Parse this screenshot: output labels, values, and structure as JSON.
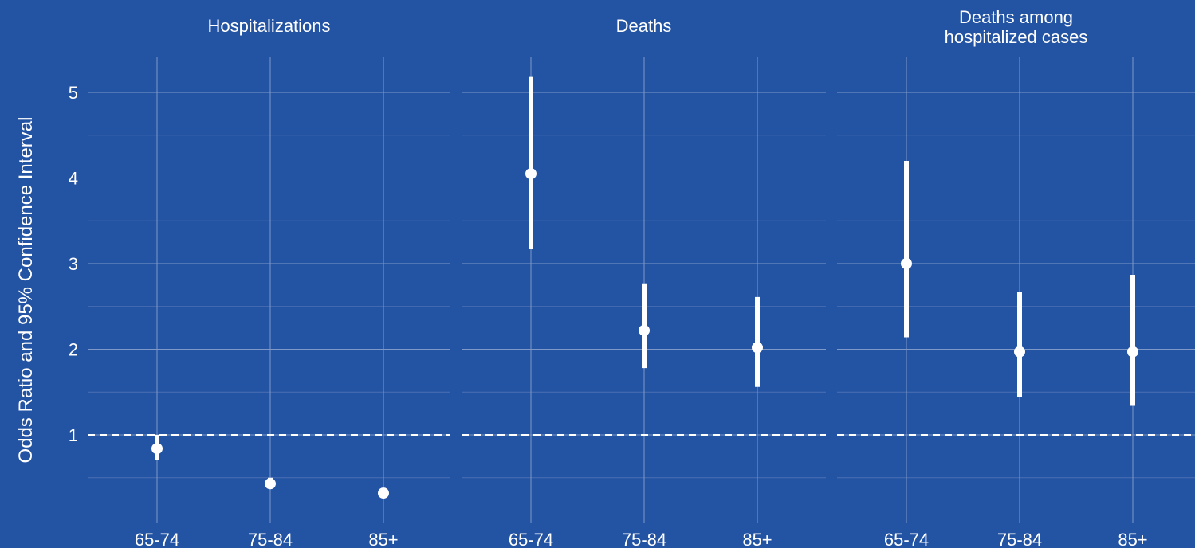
{
  "colors": {
    "background": "#2353a3",
    "grid_major": "#7f98c8",
    "grid_minor": "#4d71b4",
    "marks": "#ffffff",
    "reference_line": "#ffffff"
  },
  "chart_data": {
    "type": "scatter",
    "subtype": "point-range (odds ratio with 95% confidence interval), faceted",
    "ylabel": "Odds Ratio and 95% Confidence Interval",
    "yticks": [
      "1",
      "2",
      "3",
      "4",
      "5"
    ],
    "ylim": [
      0.0,
      5.4
    ],
    "reference_line": 1,
    "grid": true,
    "categories": [
      "65-74",
      "75-84",
      "85+"
    ],
    "panels": [
      {
        "title": [
          "Hospitalizations"
        ],
        "points": [
          {
            "category": "65-74",
            "value": 0.84,
            "lower": 0.71,
            "upper": 1.0
          },
          {
            "category": "75-84",
            "value": 0.43,
            "lower": 0.38,
            "upper": 0.5
          },
          {
            "category": "85+",
            "value": 0.32,
            "lower": 0.27,
            "upper": 0.38
          }
        ]
      },
      {
        "title": [
          "Deaths"
        ],
        "points": [
          {
            "category": "65-74",
            "value": 4.05,
            "lower": 3.17,
            "upper": 5.18
          },
          {
            "category": "75-84",
            "value": 2.22,
            "lower": 1.78,
            "upper": 2.77
          },
          {
            "category": "85+",
            "value": 2.02,
            "lower": 1.56,
            "upper": 2.61
          }
        ]
      },
      {
        "title": [
          "Deaths among",
          "hospitalized cases"
        ],
        "points": [
          {
            "category": "65-74",
            "value": 3.0,
            "lower": 2.14,
            "upper": 4.2
          },
          {
            "category": "75-84",
            "value": 1.97,
            "lower": 1.44,
            "upper": 2.67
          },
          {
            "category": "85+",
            "value": 1.97,
            "lower": 1.34,
            "upper": 2.87
          }
        ]
      }
    ]
  }
}
